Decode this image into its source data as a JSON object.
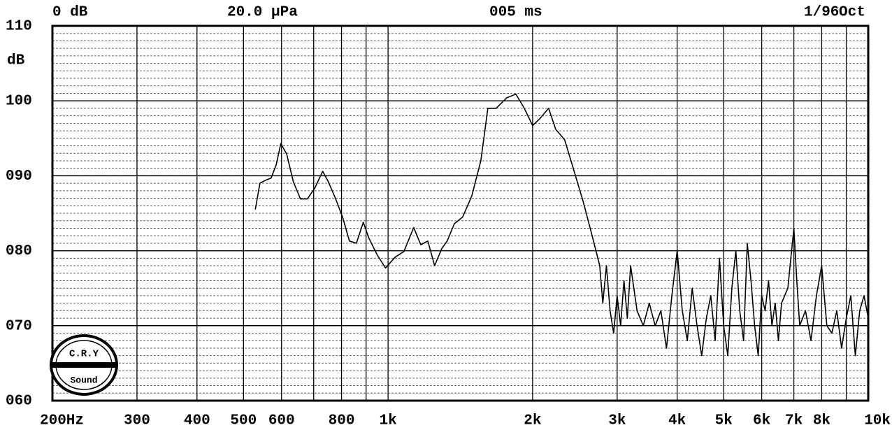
{
  "chart_data": {
    "type": "line",
    "header": [
      "0 dB",
      "20.0 μPa",
      "005 ms",
      "1/96",
      "Oct"
    ],
    "ylabel": "dB",
    "logo": {
      "top": "C.R.Y",
      "bottom": "Sound"
    },
    "xscale": "log",
    "xlim": [
      200,
      10000
    ],
    "xticks": [
      {
        "value": 200,
        "label": "200Hz"
      },
      300,
      400,
      500,
      600,
      800,
      {
        "value": 1000,
        "label": "1k"
      },
      {
        "value": 2000,
        "label": "2k"
      },
      {
        "value": 3000,
        "label": "3k"
      },
      {
        "value": 4000,
        "label": "4k"
      },
      {
        "value": 5000,
        "label": "5k"
      },
      {
        "value": 6000,
        "label": "6k"
      },
      {
        "value": 7000,
        "label": "7k"
      },
      {
        "value": 8000,
        "label": "8k"
      },
      {
        "value": 10000,
        "label": "10k"
      }
    ],
    "xminor": [
      700,
      900,
      9000
    ],
    "ylim": [
      60,
      110
    ],
    "yticks": [
      {
        "value": 60,
        "label": "060"
      },
      {
        "value": 70,
        "label": "070"
      },
      {
        "value": 80,
        "label": "080"
      },
      {
        "value": 90,
        "label": "090"
      },
      100,
      110
    ],
    "grid": true,
    "color": "#000000",
    "x": [
      529,
      541,
      556,
      571,
      585,
      598,
      615,
      635,
      657,
      679,
      703,
      731,
      751,
      778,
      804,
      831,
      859,
      888,
      912,
      950,
      988,
      1033,
      1079,
      1131,
      1170,
      1210,
      1250,
      1294,
      1328,
      1374,
      1430,
      1494,
      1560,
      1614,
      1679,
      1766,
      1846,
      1922,
      2000,
      2070,
      2160,
      2234,
      2332,
      2428,
      2553,
      2668,
      2759,
      2800,
      2850,
      2900,
      2950,
      3000,
      3050,
      3100,
      3150,
      3200,
      3300,
      3400,
      3500,
      3600,
      3700,
      3800,
      3900,
      4000,
      4100,
      4200,
      4300,
      4400,
      4500,
      4600,
      4700,
      4800,
      4900,
      5000,
      5100,
      5200,
      5300,
      5400,
      5500,
      5600,
      5700,
      5800,
      5900,
      6000,
      6100,
      6200,
      6300,
      6400,
      6500,
      6600,
      6800,
      7000,
      7100,
      7200,
      7400,
      7600,
      7800,
      8000,
      8200,
      8400,
      8600,
      8800,
      9000,
      9200,
      9400,
      9600,
      9800,
      10000
    ],
    "values": [
      85.5,
      89,
      89.4,
      89.7,
      91.5,
      94.3,
      92.9,
      89.2,
      86.9,
      86.9,
      88.3,
      90.6,
      89.2,
      86.9,
      84.5,
      81.3,
      81.0,
      83.8,
      81.7,
      79.4,
      77.7,
      79.1,
      79.9,
      83.1,
      80.8,
      81.3,
      78.0,
      80.3,
      81.3,
      83.6,
      84.5,
      87.3,
      92.0,
      99.0,
      99.0,
      100.4,
      100.9,
      99.0,
      96.7,
      97.6,
      99.0,
      96.2,
      94.8,
      91.1,
      86.4,
      81.7,
      78.0,
      73,
      78,
      72,
      69,
      74,
      70,
      76,
      71,
      78,
      72,
      70,
      73,
      70,
      72,
      67,
      74,
      80,
      72,
      68,
      75,
      70,
      66,
      71,
      74,
      68,
      79,
      70,
      66,
      75,
      80,
      72,
      68,
      81,
      76,
      70,
      66,
      74,
      72,
      76,
      70,
      73,
      68,
      73,
      75,
      83,
      76,
      70,
      72,
      68,
      74,
      78,
      70,
      69,
      72,
      67,
      71,
      74,
      66,
      72,
      74,
      71
    ]
  }
}
